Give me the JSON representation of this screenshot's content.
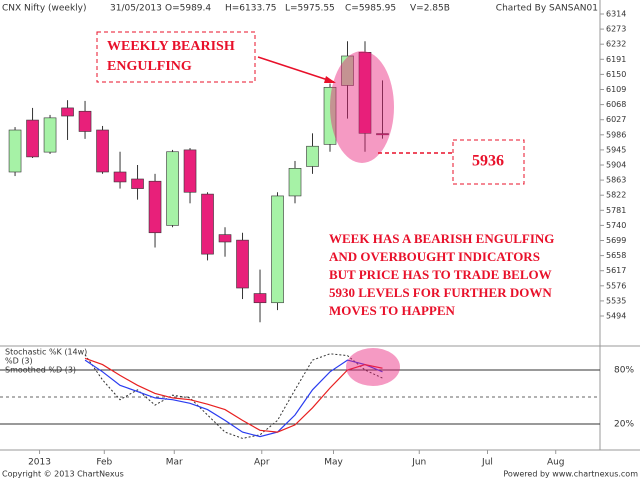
{
  "chart_data": {
    "type": "candlestick",
    "header": [
      "CNX Nifty (weekly)",
      "31/05/2013",
      "O=5989.4",
      "H=6133.75",
      "L=5975.55",
      "C=5985.95",
      "V=2.85B"
    ],
    "credit": "Charted By SANSAN01",
    "colors": {
      "up": "#a6f2a6",
      "down": "#e8207a",
      "outline": "#333333"
    },
    "candles": [
      {
        "open": 5885,
        "high": 6007,
        "low": 5874,
        "close": 5999
      },
      {
        "open": 6026,
        "high": 6059,
        "low": 5923,
        "close": 5926
      },
      {
        "open": 5939,
        "high": 6040,
        "low": 5934,
        "close": 6032
      },
      {
        "open": 6059,
        "high": 6080,
        "low": 5972,
        "close": 6037
      },
      {
        "open": 6050,
        "high": 6078,
        "low": 5975,
        "close": 5995
      },
      {
        "open": 5999,
        "high": 6010,
        "low": 5880,
        "close": 5885
      },
      {
        "open": 5885,
        "high": 5940,
        "low": 5840,
        "close": 5858
      },
      {
        "open": 5866,
        "high": 5904,
        "low": 5810,
        "close": 5840
      },
      {
        "open": 5860,
        "high": 5880,
        "low": 5680,
        "close": 5720
      },
      {
        "open": 5740,
        "high": 5945,
        "low": 5735,
        "close": 5940
      },
      {
        "open": 5945,
        "high": 5950,
        "low": 5800,
        "close": 5830
      },
      {
        "open": 5825,
        "high": 5830,
        "low": 5645,
        "close": 5662
      },
      {
        "open": 5715,
        "high": 5735,
        "low": 5655,
        "close": 5695
      },
      {
        "open": 5700,
        "high": 5720,
        "low": 5540,
        "close": 5570
      },
      {
        "open": 5555,
        "high": 5620,
        "low": 5477,
        "close": 5530
      },
      {
        "open": 5530,
        "high": 5830,
        "low": 5510,
        "close": 5820
      },
      {
        "open": 5820,
        "high": 5915,
        "low": 5800,
        "close": 5895
      },
      {
        "open": 5900,
        "high": 5990,
        "low": 5880,
        "close": 5955
      },
      {
        "open": 5960,
        "high": 6125,
        "low": 5940,
        "close": 6115
      },
      {
        "open": 6120,
        "high": 6240,
        "low": 6030,
        "close": 6200
      },
      {
        "open": 6210,
        "high": 6240,
        "low": 5940,
        "close": 5990
      },
      {
        "open": 5989.4,
        "high": 6133.75,
        "low": 5975.55,
        "close": 5985.95
      }
    ],
    "xlim": [
      -0.86,
      33.43
    ],
    "xticks": [
      {
        "value": 1.4,
        "label": "2013"
      },
      {
        "value": 5.1,
        "label": "Feb"
      },
      {
        "value": 9.1,
        "label": "Mar"
      },
      {
        "value": 14.1,
        "label": "Apr"
      },
      {
        "value": 18.2,
        "label": "May"
      },
      {
        "value": 23.1,
        "label": "Jun"
      },
      {
        "value": 27,
        "label": "Jul"
      },
      {
        "value": 30.9,
        "label": "Aug"
      }
    ],
    "ylim": [
      5494,
      6314
    ],
    "yticks": [
      5494,
      5535,
      5576,
      5617,
      5658,
      5699,
      5740,
      5781,
      5822,
      5863,
      5904,
      5945,
      5986,
      6027,
      6068,
      6109,
      6150,
      6191,
      6232,
      6273,
      6314
    ],
    "annotations": {
      "pattern": [
        "WEEKLY BEARISH",
        "ENGULFING"
      ],
      "level": "5936",
      "note": [
        "WEEK HAS A BEARISH ENGULFING",
        "AND OVERBOUGHT INDICATORS",
        "BUT PRICE HAS TO TRADE BELOW",
        "5930 LEVELS FOR FURTHER DOWN",
        "MOVES TO HAPPEN"
      ]
    },
    "indicator": {
      "ylim": [
        0,
        100
      ],
      "yticks": [
        {
          "value": 80,
          "label": "80%"
        },
        {
          "value": 20,
          "label": "20%"
        }
      ],
      "midline": 50,
      "series": [
        {
          "name": "Stochastic %K (14w)",
          "color": "#333333",
          "style": "dotted",
          "values": [
            null,
            null,
            null,
            null,
            97,
            69,
            47,
            58,
            41,
            52,
            49,
            30,
            11,
            4,
            8,
            24,
            58,
            91,
            98,
            96,
            80,
            71
          ]
        },
        {
          "name": "%D (3)",
          "color": "#2a3cf0",
          "style": "solid",
          "values": [
            null,
            null,
            null,
            null,
            91,
            78,
            63,
            56,
            49,
            47,
            43,
            36,
            24,
            11,
            6,
            11,
            30,
            58,
            78,
            91,
            86,
            78
          ]
        },
        {
          "name": "Smoothed %D (3)",
          "color": "#e82020",
          "style": "solid",
          "values": [
            null,
            null,
            null,
            null,
            93,
            86,
            74,
            63,
            54,
            49,
            47,
            42,
            36,
            24,
            13,
            11,
            19,
            38,
            60,
            80,
            86,
            82
          ]
        }
      ]
    },
    "footer": [
      "Copyright © 2013 ChartNexus",
      "Powered by www.chartnexus.com"
    ]
  }
}
